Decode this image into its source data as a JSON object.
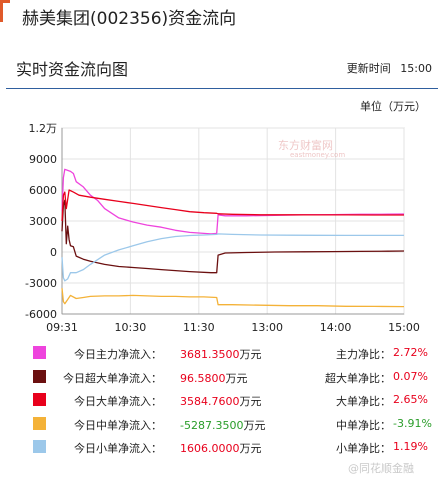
{
  "page": {
    "title": "赫美集团(002356)资金流向",
    "subtitle": "实时资金流向图",
    "update_label": "更新时间",
    "update_time": "15:00",
    "unit_label": "单位（万元）",
    "watermark_cn": "东方财富网",
    "watermark_en": "eastmoney.com",
    "corner_watermark": "@同花顺金融"
  },
  "chart_data": {
    "type": "line",
    "title": "实时资金流向图",
    "xlabel": "",
    "ylabel": "单位（万元）",
    "x_ticks": [
      "09:31",
      "10:30",
      "11:30",
      "13:00",
      "14:00",
      "15:00"
    ],
    "y_ticks": [
      "1.2万",
      "9000",
      "6000",
      "3000",
      "0",
      "-3000",
      "-6000"
    ],
    "ylim": [
      -6000,
      12000
    ],
    "x_minutes": [
      0,
      241
    ],
    "grid": true,
    "legend": "bottom",
    "series": [
      {
        "name": "今日主力净流入",
        "color": "#ee44dd",
        "points": [
          [
            0,
            4000
          ],
          [
            1,
            7200
          ],
          [
            2,
            8000
          ],
          [
            4,
            7900
          ],
          [
            6,
            7800
          ],
          [
            8,
            7600
          ],
          [
            10,
            6800
          ],
          [
            15,
            6300
          ],
          [
            20,
            5500
          ],
          [
            25,
            5000
          ],
          [
            30,
            4200
          ],
          [
            40,
            3300
          ],
          [
            50,
            2900
          ],
          [
            60,
            2600
          ],
          [
            70,
            2400
          ],
          [
            80,
            2100
          ],
          [
            90,
            1900
          ],
          [
            105,
            1750
          ],
          [
            109,
            1800
          ],
          [
            110,
            3600
          ],
          [
            115,
            3500
          ],
          [
            130,
            3500
          ],
          [
            150,
            3550
          ],
          [
            170,
            3600
          ],
          [
            190,
            3620
          ],
          [
            210,
            3650
          ],
          [
            230,
            3660
          ],
          [
            241,
            3681
          ]
        ]
      },
      {
        "name": "今日超大单净流入",
        "color": "#6b1010",
        "points": [
          [
            0,
            2000
          ],
          [
            1,
            4500
          ],
          [
            2,
            5000
          ],
          [
            3,
            800
          ],
          [
            4,
            2500
          ],
          [
            5,
            1200
          ],
          [
            6,
            600
          ],
          [
            8,
            500
          ],
          [
            10,
            -400
          ],
          [
            15,
            -700
          ],
          [
            20,
            -900
          ],
          [
            30,
            -1200
          ],
          [
            40,
            -1400
          ],
          [
            50,
            -1500
          ],
          [
            60,
            -1600
          ],
          [
            70,
            -1700
          ],
          [
            80,
            -1800
          ],
          [
            90,
            -1900
          ],
          [
            105,
            -2000
          ],
          [
            109,
            -2000
          ],
          [
            110,
            -300
          ],
          [
            115,
            -100
          ],
          [
            130,
            -50
          ],
          [
            150,
            0
          ],
          [
            170,
            20
          ],
          [
            190,
            40
          ],
          [
            210,
            60
          ],
          [
            230,
            80
          ],
          [
            241,
            97
          ]
        ]
      },
      {
        "name": "今日大单净流入",
        "color": "#e8001c",
        "points": [
          [
            0,
            3000
          ],
          [
            1,
            5500
          ],
          [
            2,
            5800
          ],
          [
            3,
            4200
          ],
          [
            5,
            6000
          ],
          [
            8,
            5800
          ],
          [
            12,
            5500
          ],
          [
            20,
            5300
          ],
          [
            30,
            5100
          ],
          [
            40,
            4900
          ],
          [
            50,
            4700
          ],
          [
            60,
            4500
          ],
          [
            70,
            4300
          ],
          [
            80,
            4100
          ],
          [
            90,
            3900
          ],
          [
            100,
            3800
          ],
          [
            109,
            3750
          ],
          [
            110,
            3700
          ],
          [
            120,
            3650
          ],
          [
            140,
            3600
          ],
          [
            160,
            3600
          ],
          [
            180,
            3590
          ],
          [
            200,
            3590
          ],
          [
            220,
            3585
          ],
          [
            241,
            3585
          ]
        ]
      },
      {
        "name": "今日中单净流入",
        "color": "#f4b238",
        "points": [
          [
            0,
            -3500
          ],
          [
            1,
            -4800
          ],
          [
            2,
            -5000
          ],
          [
            4,
            -4600
          ],
          [
            6,
            -4200
          ],
          [
            10,
            -4500
          ],
          [
            15,
            -4400
          ],
          [
            20,
            -4300
          ],
          [
            30,
            -4250
          ],
          [
            40,
            -4250
          ],
          [
            50,
            -4200
          ],
          [
            60,
            -4250
          ],
          [
            70,
            -4300
          ],
          [
            80,
            -4300
          ],
          [
            90,
            -4350
          ],
          [
            100,
            -4350
          ],
          [
            109,
            -4400
          ],
          [
            110,
            -5100
          ],
          [
            120,
            -5100
          ],
          [
            140,
            -5150
          ],
          [
            160,
            -5200
          ],
          [
            180,
            -5200
          ],
          [
            200,
            -5250
          ],
          [
            220,
            -5260
          ],
          [
            241,
            -5287
          ]
        ]
      },
      {
        "name": "今日小单净流入",
        "color": "#9cc8ea",
        "points": [
          [
            0,
            -500
          ],
          [
            1,
            -2500
          ],
          [
            2,
            -2800
          ],
          [
            4,
            -2600
          ],
          [
            6,
            -2000
          ],
          [
            10,
            -2000
          ],
          [
            15,
            -1700
          ],
          [
            20,
            -1200
          ],
          [
            30,
            -300
          ],
          [
            40,
            200
          ],
          [
            50,
            600
          ],
          [
            60,
            1000
          ],
          [
            70,
            1300
          ],
          [
            80,
            1500
          ],
          [
            90,
            1600
          ],
          [
            100,
            1650
          ],
          [
            109,
            1700
          ],
          [
            110,
            1750
          ],
          [
            120,
            1700
          ],
          [
            140,
            1650
          ],
          [
            160,
            1630
          ],
          [
            180,
            1620
          ],
          [
            200,
            1610
          ],
          [
            220,
            1608
          ],
          [
            241,
            1606
          ]
        ]
      }
    ]
  },
  "legend": [
    {
      "label": "今日主力净流入：",
      "value": "3681.3500",
      "unit": "万元",
      "ratio_label": "主力净比：",
      "ratio": "2.72%",
      "color": "#ee44dd"
    },
    {
      "label": "今日超大单净流入：",
      "value": "96.5800",
      "unit": "万元",
      "ratio_label": "超大单净比：",
      "ratio": "0.07%",
      "color": "#6b1010"
    },
    {
      "label": "今日大单净流入：",
      "value": "3584.7600",
      "unit": "万元",
      "ratio_label": "大单净比：",
      "ratio": "2.65%",
      "color": "#e8001c"
    },
    {
      "label": "今日中单净流入：",
      "value": "-5287.3500",
      "unit": "万元",
      "ratio_label": "中单净比：",
      "ratio": "-3.91%",
      "color": "#f4b238"
    },
    {
      "label": "今日小单净流入：",
      "value": "1606.0000",
      "unit": "万元",
      "ratio_label": "小单净比：",
      "ratio": "1.19%",
      "color": "#9cc8ea"
    }
  ]
}
